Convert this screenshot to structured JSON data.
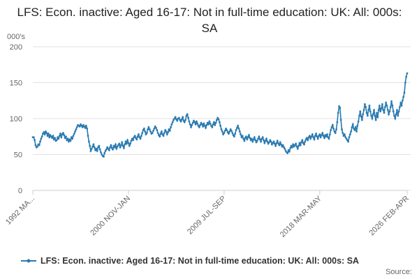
{
  "chart_data": {
    "type": "line",
    "title": "LFS: Econ. inactive: Aged 16-17: Not in full-time education: UK: All: 000s: SA",
    "y_label": "000's",
    "source": "Source:",
    "ylim": [
      0,
      200
    ],
    "yticks": [
      0,
      50,
      100,
      150,
      200
    ],
    "grid": true,
    "legend": "bottom",
    "categories": [
      "1992 MA...",
      null,
      null,
      null,
      null,
      null,
      null,
      null,
      null,
      null,
      null,
      null,
      null,
      null,
      null,
      null,
      null,
      null,
      null,
      null,
      null,
      null,
      null,
      null,
      null,
      null,
      null,
      null,
      null,
      null,
      null,
      null,
      null,
      null,
      null,
      null,
      null,
      null,
      null,
      null,
      null,
      null,
      null,
      null,
      null,
      null,
      null,
      null,
      null,
      null,
      null,
      null,
      null,
      null,
      null,
      null,
      null,
      null,
      null,
      null,
      null,
      null,
      null,
      null,
      null,
      null,
      null,
      null,
      null,
      null,
      null,
      null,
      null,
      null,
      null,
      null,
      null,
      null,
      null,
      null,
      null,
      null,
      null,
      null,
      null,
      null,
      null,
      null,
      null,
      null,
      null,
      null,
      null,
      null,
      null,
      null,
      null,
      null,
      null,
      null,
      null,
      null,
      null,
      null,
      "2000 NOV-JAN",
      null,
      null,
      null,
      null,
      null,
      null,
      null,
      null,
      null,
      null,
      null,
      null,
      null,
      null,
      null,
      null,
      null,
      null,
      null,
      null,
      null,
      null,
      null,
      null,
      null,
      null,
      null,
      null,
      null,
      null,
      null,
      null,
      null,
      null,
      null,
      null,
      null,
      null,
      null,
      null,
      null,
      null,
      null,
      null,
      null,
      null,
      null,
      null,
      null,
      null,
      null,
      null,
      null,
      null,
      null,
      null,
      null,
      null,
      null,
      null,
      null,
      null,
      null,
      null,
      null,
      null,
      null,
      null,
      null,
      null,
      null,
      null,
      null,
      null,
      null,
      null,
      null,
      null,
      null,
      null,
      null,
      null,
      null,
      null,
      null,
      null,
      null,
      null,
      null,
      null,
      null,
      null,
      null,
      null,
      null,
      null,
      null,
      null,
      null,
      null,
      null,
      null,
      null,
      "2009 JUL-SEP",
      null,
      null,
      null,
      null,
      null,
      null,
      null,
      null,
      null,
      null,
      null,
      null,
      null,
      null,
      null,
      null,
      null,
      null,
      null,
      null,
      null,
      null,
      null,
      null,
      null,
      null,
      null,
      null,
      null,
      null,
      null,
      null,
      null,
      null,
      null,
      null,
      null,
      null,
      null,
      null,
      null,
      null,
      null,
      null,
      null,
      null,
      null,
      null,
      null,
      null,
      null,
      null,
      null,
      null,
      null,
      null,
      null,
      null,
      null,
      null,
      null,
      null,
      null,
      null,
      null,
      null,
      null,
      null,
      null,
      null,
      null,
      null,
      null,
      null,
      null,
      null,
      null,
      null,
      null,
      null,
      null,
      null,
      null,
      null,
      null,
      null,
      null,
      null,
      null,
      null,
      null,
      null,
      null,
      null,
      null,
      null,
      null,
      null,
      null,
      null,
      null,
      null,
      null,
      "2018 MAR-MAY",
      null,
      null,
      null,
      null,
      null,
      null,
      null,
      null,
      null,
      null,
      null,
      null,
      null,
      null,
      null,
      null,
      null,
      null,
      null,
      null,
      null,
      null,
      null,
      null,
      null,
      null,
      null,
      null,
      null,
      null,
      null,
      null,
      null,
      null,
      null,
      null,
      null,
      null,
      null,
      null,
      null,
      null,
      null,
      null,
      null,
      null,
      null,
      null,
      null,
      null,
      null,
      null,
      null,
      null,
      null,
      null,
      null,
      null,
      null,
      null,
      null,
      null,
      null,
      null,
      null,
      null,
      null,
      null,
      null,
      null,
      null,
      null,
      null,
      null,
      null,
      null,
      null,
      null,
      null,
      null,
      null,
      null,
      null,
      null,
      null,
      null,
      null,
      null,
      null,
      null,
      null,
      null,
      null,
      null,
      "2026 FEB-APR"
    ],
    "series": [
      {
        "name": "LFS: Econ. inactive: Aged 16-17: Not in full-time education: UK: All: 000s: SA",
        "color": "#2a7ab0",
        "values": [
          74,
          74,
          70,
          63,
          60,
          61,
          64,
          63,
          68,
          72,
          75,
          79,
          81,
          78,
          82,
          80,
          76,
          79,
          74,
          77,
          75,
          73,
          76,
          71,
          73,
          69,
          70,
          74,
          72,
          76,
          79,
          74,
          78,
          80,
          77,
          73,
          75,
          70,
          72,
          68,
          71,
          69,
          74,
          72,
          76,
          79,
          82,
          85,
          88,
          91,
          90,
          89,
          92,
          90,
          88,
          91,
          89,
          87,
          90,
          86,
          76,
          68,
          62,
          55,
          58,
          61,
          64,
          60,
          56,
          58,
          55,
          60,
          62,
          57,
          53,
          50,
          48,
          47,
          52,
          55,
          57,
          60,
          58,
          56,
          60,
          63,
          59,
          57,
          62,
          60,
          64,
          58,
          61,
          63,
          65,
          60,
          63,
          67,
          62,
          59,
          64,
          68,
          65,
          70,
          66,
          62,
          65,
          69,
          72,
          70,
          74,
          76,
          73,
          71,
          75,
          78,
          74,
          72,
          76,
          80,
          84,
          86,
          82,
          78,
          80,
          85,
          88,
          85,
          82,
          79,
          80,
          83,
          86,
          89,
          87,
          84,
          80,
          77,
          75,
          79,
          82,
          78,
          76,
          80,
          84,
          82,
          78,
          81,
          85,
          83,
          88,
          92,
          95,
          98,
          100,
          102,
          99,
          97,
          100,
          101,
          98,
          96,
          99,
          102,
          97,
          95,
          98,
          104,
          106,
          101,
          96,
          92,
          88,
          91,
          94,
          97,
          95,
          92,
          96,
          93,
          90,
          88,
          91,
          94,
          92,
          89,
          93,
          90,
          87,
          91,
          94,
          92,
          96,
          93,
          90,
          88,
          92,
          95,
          91,
          94,
          98,
          101,
          99,
          95,
          90,
          85,
          82,
          78,
          80,
          83,
          86,
          84,
          81,
          79,
          82,
          85,
          83,
          80,
          77,
          75,
          79,
          84,
          87,
          90,
          86,
          82,
          78,
          74,
          76,
          72,
          69,
          73,
          75,
          71,
          74,
          77,
          73,
          70,
          72,
          68,
          71,
          74,
          70,
          67,
          69,
          72,
          75,
          71,
          68,
          72,
          74,
          70,
          66,
          69,
          72,
          68,
          65,
          67,
          70,
          68,
          64,
          66,
          68,
          65,
          62,
          66,
          69,
          65,
          63,
          67,
          64,
          61,
          63,
          60,
          58,
          55,
          53,
          52,
          56,
          54,
          59,
          62,
          60,
          64,
          61,
          63,
          65,
          61,
          58,
          62,
          66,
          63,
          67,
          70,
          66,
          64,
          68,
          71,
          73,
          70,
          74,
          76,
          72,
          75,
          78,
          74,
          71,
          76,
          79,
          75,
          72,
          76,
          78,
          74,
          77,
          80,
          76,
          73,
          77,
          75,
          78,
          74,
          72,
          78,
          84,
          88,
          91,
          86,
          82,
          80,
          85,
          95,
          108,
          117,
          115,
          98,
          85,
          80,
          76,
          78,
          74,
          72,
          70,
          68,
          74,
          78,
          82,
          88,
          92,
          86,
          84,
          88,
          82,
          90,
          96,
          104,
          110,
          103,
          98,
          106,
          112,
          120,
          116,
          108,
          104,
          112,
          118,
          110,
          104,
          100,
          106,
          112,
          104,
          98,
          108,
          102,
          112,
          118,
          110,
          114,
          120,
          112,
          108,
          116,
          122,
          118,
          112,
          106,
          110,
          116,
          124,
          118,
          110,
          104,
          100,
          106,
          112,
          104,
          110,
          116,
          122,
          118,
          125,
          130,
          136,
          150,
          158,
          163
        ]
      }
    ]
  }
}
